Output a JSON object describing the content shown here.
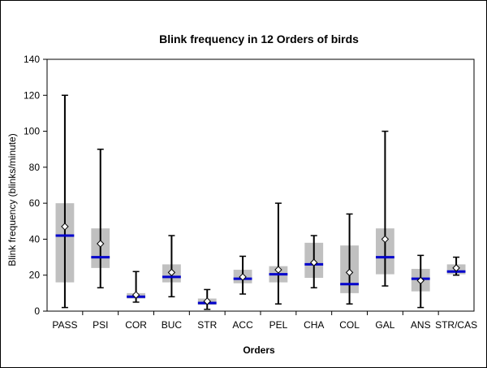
{
  "chart_data": {
    "type": "boxplot",
    "title": "Blink frequency in 12 Orders of birds",
    "xlabel": "Orders",
    "ylabel": "Blink  frequency (blinks/minute)",
    "ylim": [
      0,
      140
    ],
    "yticks": [
      0,
      20,
      40,
      60,
      80,
      100,
      120,
      140
    ],
    "grid": false,
    "legend": "none",
    "categories": [
      "PASS",
      "PSI",
      "COR",
      "BUC",
      "STR",
      "ACC",
      "PEL",
      "CHA",
      "COL",
      "GAL",
      "ANS",
      "STR/CAS"
    ],
    "series": [
      {
        "category": "PASS",
        "min": 2,
        "q1": 16,
        "median": 42,
        "q3": 60,
        "max": 120,
        "mean": 47
      },
      {
        "category": "PSI",
        "min": 13,
        "q1": 24,
        "median": 30,
        "q3": 46,
        "max": 90,
        "mean": 37.5
      },
      {
        "category": "COR",
        "min": 5,
        "q1": 7,
        "median": 8,
        "q3": 10,
        "max": 22,
        "mean": 9
      },
      {
        "category": "BUC",
        "min": 8,
        "q1": 16,
        "median": 19,
        "q3": 26,
        "max": 42,
        "mean": 21.5
      },
      {
        "category": "STR",
        "min": 1,
        "q1": 3.5,
        "median": 4.5,
        "q3": 7,
        "max": 12,
        "mean": 5.5
      },
      {
        "category": "ACC",
        "min": 9.5,
        "q1": 15.5,
        "median": 18,
        "q3": 23,
        "max": 30.5,
        "mean": 19
      },
      {
        "category": "PEL",
        "min": 4,
        "q1": 16,
        "median": 20.5,
        "q3": 25,
        "max": 60,
        "mean": 23
      },
      {
        "category": "CHA",
        "min": 13,
        "q1": 18.5,
        "median": 26,
        "q3": 38,
        "max": 42,
        "mean": 27
      },
      {
        "category": "COL",
        "min": 4,
        "q1": 10,
        "median": 15,
        "q3": 36.5,
        "max": 54,
        "mean": 21.5
      },
      {
        "category": "GAL",
        "min": 14,
        "q1": 20.5,
        "median": 30,
        "q3": 46,
        "max": 100,
        "mean": 40
      },
      {
        "category": "ANS",
        "min": 2,
        "q1": 11,
        "median": 18,
        "q3": 23.5,
        "max": 31,
        "mean": 17
      },
      {
        "category": "STR/CAS",
        "min": 20,
        "q1": 20.5,
        "median": 22,
        "q3": 26,
        "max": 30,
        "mean": 24
      }
    ],
    "colors": {
      "box": "#c0c0c0",
      "median": "#0000cc",
      "whisker": "#000000",
      "mean_marker_fill": "#ffffff",
      "mean_marker_stroke": "#000000"
    }
  }
}
